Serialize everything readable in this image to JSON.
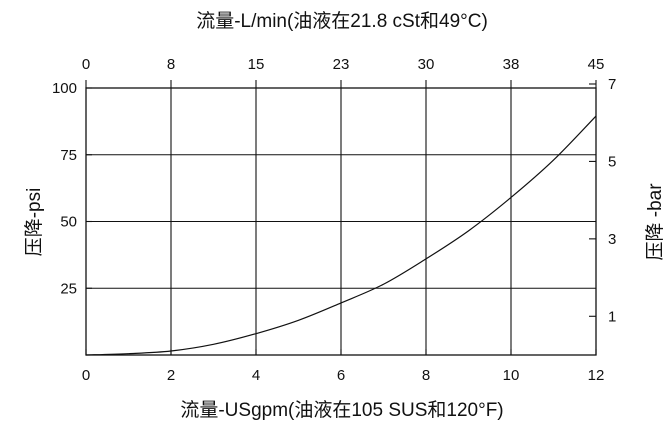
{
  "chart_data": {
    "type": "line",
    "title": "流量-L/min(油液在21.8 cSt和49°C)",
    "xlabel": "流量-USgpm(油液在105 SUS和120°F)",
    "ylabel": "压降-psi",
    "ylabel_right": "压降 -bar",
    "xlim": [
      0,
      12
    ],
    "ylim": [
      0,
      100
    ],
    "grid": true,
    "x_ticks": [
      0,
      2,
      4,
      6,
      8,
      10,
      12
    ],
    "y_ticks": [
      25,
      50,
      75,
      100
    ],
    "top_ticks": [
      {
        "label": "0",
        "x": 0
      },
      {
        "label": "8",
        "x": 2.0
      },
      {
        "label": "15",
        "x": 4.0
      },
      {
        "label": "23",
        "x": 6.0
      },
      {
        "label": "30",
        "x": 8.0
      },
      {
        "label": "38",
        "x": 10.0
      },
      {
        "label": "45",
        "x": 12.0
      }
    ],
    "right_ticks": [
      {
        "label": "1",
        "y": 14.5
      },
      {
        "label": "3",
        "y": 43.5
      },
      {
        "label": "5",
        "y": 72.5
      },
      {
        "label": "7",
        "y": 101.5
      }
    ],
    "series": [
      {
        "x": [
          0,
          1,
          2,
          3,
          4,
          5,
          6,
          7,
          8,
          9,
          10,
          11,
          12
        ],
        "y": [
          0,
          0.5,
          1.5,
          4,
          8,
          13,
          19.5,
          26.5,
          36,
          46.5,
          59,
          73,
          89.5
        ]
      }
    ]
  }
}
